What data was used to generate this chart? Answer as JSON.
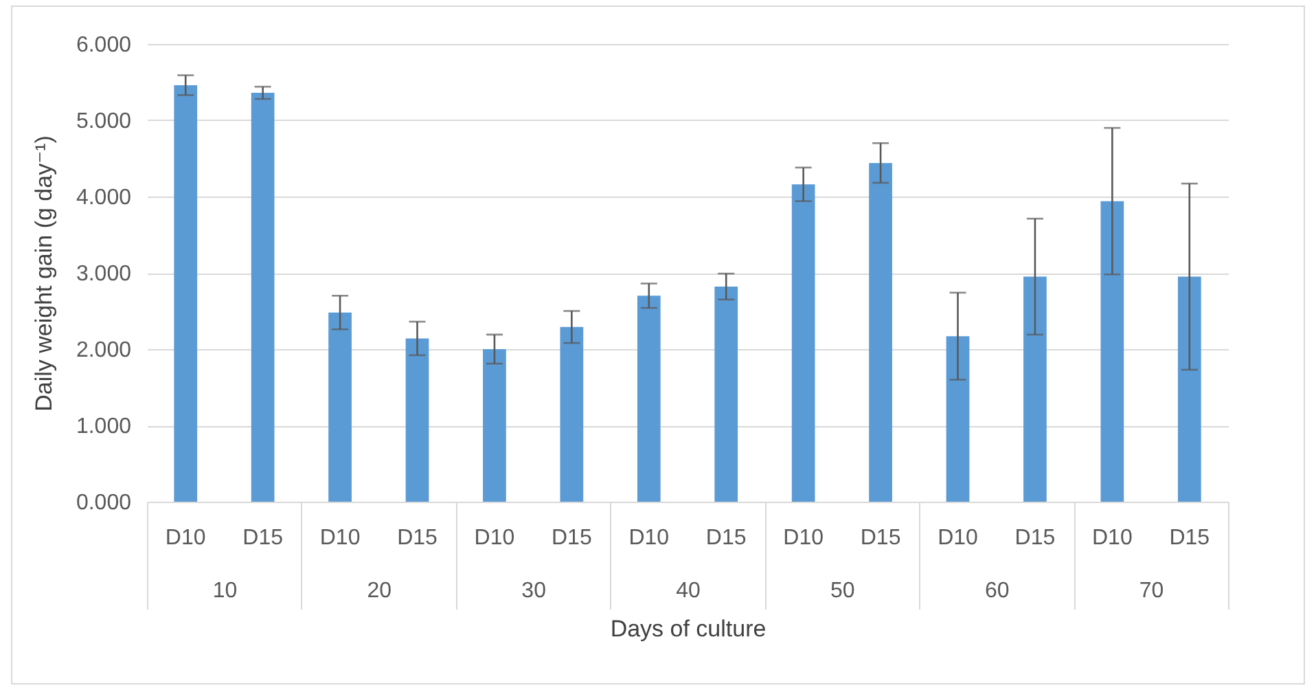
{
  "chart_data": {
    "type": "bar",
    "xlabel": "Days of culture",
    "ylabel": "Daily weight gain (g day⁻¹)",
    "categories": [
      "10",
      "20",
      "30",
      "40",
      "50",
      "60",
      "70"
    ],
    "series": [
      {
        "name": "D10",
        "color": "#5b9bd5",
        "values": [
          5.46,
          2.48,
          2.0,
          2.7,
          4.16,
          2.17,
          3.94
        ],
        "errors": [
          0.13,
          0.22,
          0.19,
          0.16,
          0.22,
          0.57,
          0.96
        ]
      },
      {
        "name": "D15",
        "color": "#5b9bd5",
        "values": [
          5.36,
          2.14,
          2.29,
          2.82,
          4.44,
          2.95,
          2.95
        ],
        "errors": [
          0.08,
          0.22,
          0.21,
          0.17,
          0.26,
          0.76,
          1.22
        ]
      }
    ],
    "ylim": [
      0,
      6
    ],
    "yticks": [
      {
        "value": 0,
        "label": "0.000"
      },
      {
        "value": 1,
        "label": "1.000"
      },
      {
        "value": 2,
        "label": "2.000"
      },
      {
        "value": 3,
        "label": "3.000"
      },
      {
        "value": 4,
        "label": "4.000"
      },
      {
        "value": 5,
        "label": "5.000"
      },
      {
        "value": 6,
        "label": "6.000"
      }
    ],
    "grid": "y",
    "legend": false
  }
}
